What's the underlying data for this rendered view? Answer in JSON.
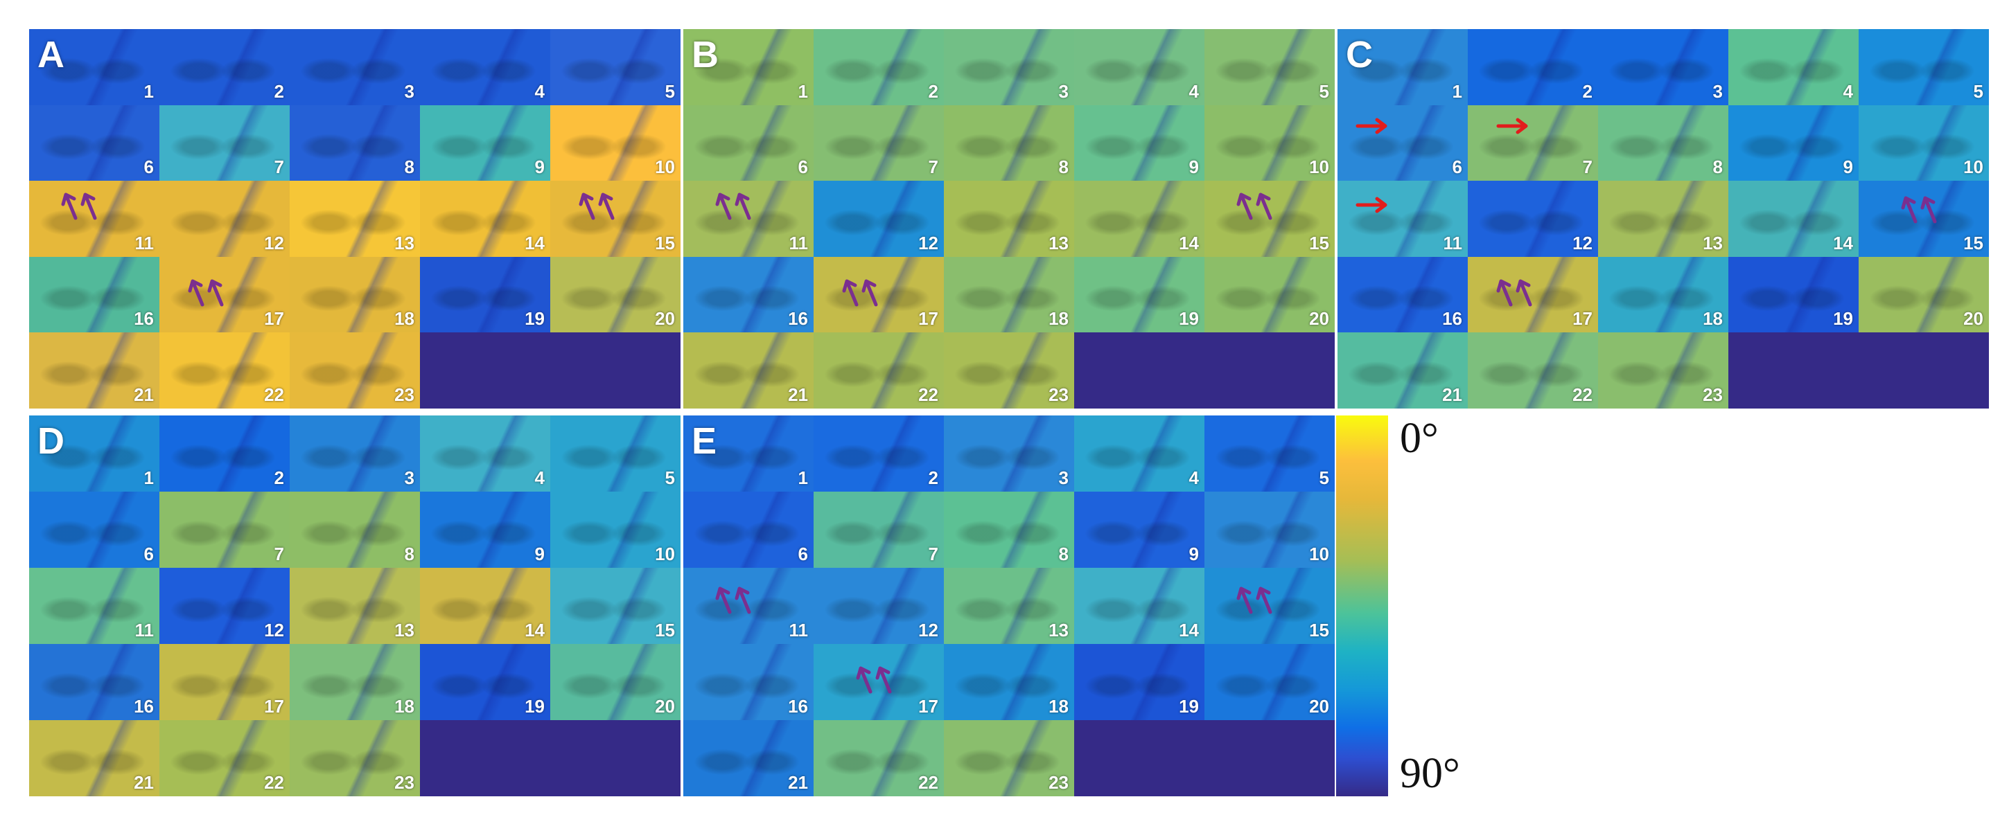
{
  "panels": [
    {
      "label": "A",
      "tiles": [
        "1",
        "2",
        "3",
        "4",
        "5",
        "6",
        "7",
        "8",
        "9",
        "10",
        "11",
        "12",
        "13",
        "14",
        "15",
        "16",
        "17",
        "18",
        "19",
        "20",
        "21",
        "22",
        "23"
      ]
    },
    {
      "label": "B",
      "tiles": [
        "1",
        "2",
        "3",
        "4",
        "5",
        "6",
        "7",
        "8",
        "9",
        "10",
        "11",
        "12",
        "13",
        "14",
        "15",
        "16",
        "17",
        "18",
        "19",
        "20",
        "21",
        "22",
        "23"
      ]
    },
    {
      "label": "C",
      "tiles": [
        "1",
        "2",
        "3",
        "4",
        "5",
        "6",
        "7",
        "8",
        "9",
        "10",
        "11",
        "12",
        "13",
        "14",
        "15",
        "16",
        "17",
        "18",
        "19",
        "20",
        "21",
        "22",
        "23"
      ]
    },
    {
      "label": "D",
      "tiles": [
        "1",
        "2",
        "3",
        "4",
        "5",
        "6",
        "7",
        "8",
        "9",
        "10",
        "11",
        "12",
        "13",
        "14",
        "15",
        "16",
        "17",
        "18",
        "19",
        "20",
        "21",
        "22",
        "23"
      ]
    },
    {
      "label": "E",
      "tiles": [
        "1",
        "2",
        "3",
        "4",
        "5",
        "6",
        "7",
        "8",
        "9",
        "10",
        "11",
        "12",
        "13",
        "14",
        "15",
        "16",
        "17",
        "18",
        "19",
        "20",
        "21",
        "22",
        "23"
      ]
    }
  ],
  "colorbar": {
    "top_label": "0°",
    "bottom_label": "90°"
  },
  "colors": {
    "yellow": "#f9fb0e",
    "orange": "#fcbf3c",
    "green": "#a6be55",
    "teal": "#1eb2c4",
    "blue": "#1598d8",
    "deep_blue": "#352a87",
    "arrow_purple": "#7b2f8f",
    "arrow_red": "#e21c1c"
  },
  "tile_colors": {
    "A": [
      "#1f5bd6",
      "#1f5bd6",
      "#1f5bd6",
      "#1f5bd6",
      "#2a63d8",
      "#2560d6",
      "#3fb0c8",
      "#2560d6",
      "#43b7b5",
      "#fcbf3c",
      "#e6b83a",
      "#e6b83a",
      "#f6c637",
      "#f0bf36",
      "#e7b93b",
      "#52b99a",
      "#e6b83a",
      "#e3b83b",
      "#2055d2",
      "#b7bd55",
      "#dcb744",
      "#f3c337",
      "#e7b93b"
    ],
    "B": [
      "#8fbf63",
      "#6cc08a",
      "#72bf86",
      "#74bf86",
      "#86be71",
      "#8bbe6a",
      "#85be72",
      "#8ebe66",
      "#66c190",
      "#8cbe68",
      "#a3bd5c",
      "#1f8fd6",
      "#a6be55",
      "#9bbd5f",
      "#a6be55",
      "#2a88d8",
      "#c4bb4a",
      "#8abe6d",
      "#6fc186",
      "#8cbe68",
      "#b5bc50",
      "#a4bd58",
      "#a9bd55"
    ],
    "C": [
      "#2a88d8",
      "#1569e0",
      "#1569e0",
      "#5cc194",
      "#1a8ddb",
      "#2a88d8",
      "#85be72",
      "#6cc08a",
      "#1a8ddb",
      "#2aa4cf",
      "#3fb0c8",
      "#1e62dc",
      "#a3bd5c",
      "#45b3b8",
      "#1b7fdb",
      "#1e62dc",
      "#c4bb4a",
      "#31a9c8",
      "#1c55d6",
      "#9bbd5f",
      "#55bca0",
      "#7dbf7d",
      "#8abe6d"
    ],
    "D": [
      "#1f8fd6",
      "#1569e0",
      "#2583d8",
      "#3fb0c8",
      "#2aa4cf",
      "#1a77dc",
      "#8cbe68",
      "#8ebe66",
      "#1a77dc",
      "#2aa4cf",
      "#66c190",
      "#1e5ddb",
      "#b7bd55",
      "#d0b947",
      "#3fb0c8",
      "#2473d6",
      "#c4bb4a",
      "#7dbf7d",
      "#1c55d6",
      "#58bb9e",
      "#c4bb4a",
      "#a6be55",
      "#9bbd5f"
    ],
    "E": [
      "#1e6fdd",
      "#1a6be0",
      "#2a88d8",
      "#2aa4cf",
      "#1a6be0",
      "#1e62dc",
      "#58bb9e",
      "#5cc194",
      "#1e62dc",
      "#2a88d8",
      "#2a88d8",
      "#2a88d8",
      "#6cc08a",
      "#3fb0c8",
      "#1f8fd6",
      "#2a88d8",
      "#2aa4cf",
      "#1f8fd6",
      "#1c55d6",
      "#1a77dc",
      "#1f7ad8",
      "#72bf86",
      "#8abe6d"
    ]
  }
}
